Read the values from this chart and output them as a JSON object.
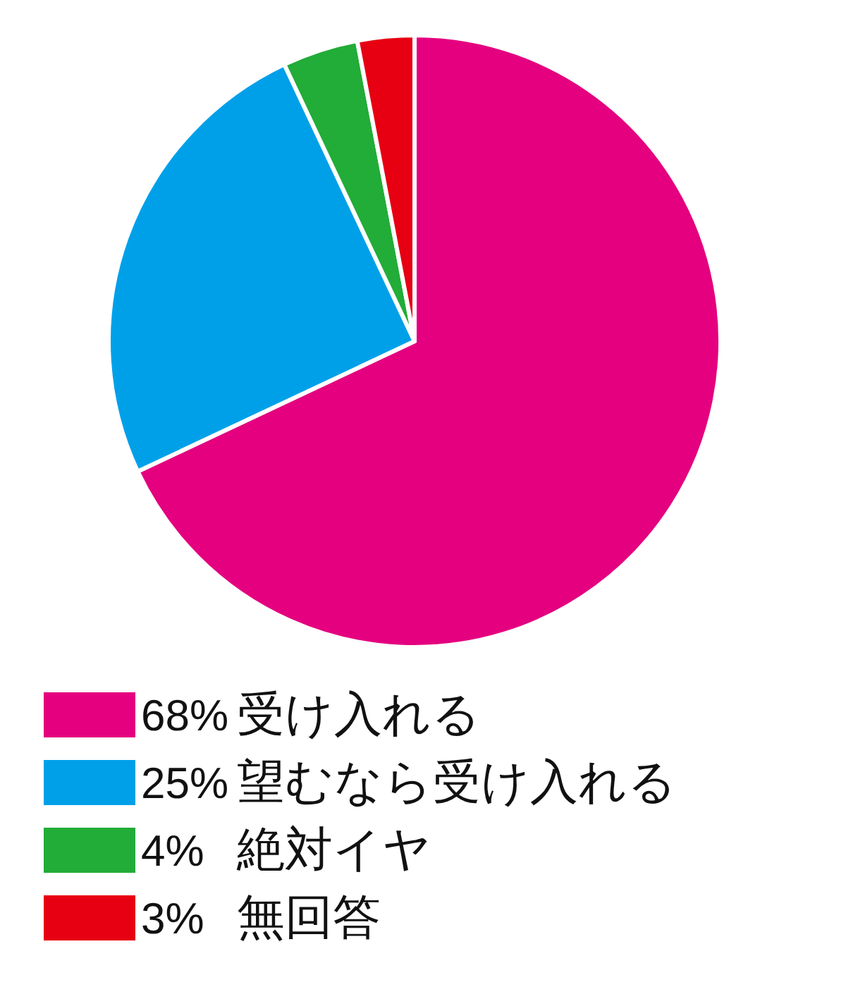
{
  "chart_data": {
    "type": "pie",
    "categories": [
      "受け入れる",
      "望むなら受け入れる",
      "絶対イヤ",
      "無回答"
    ],
    "values": [
      68,
      25,
      4,
      3
    ],
    "colors": [
      "#e4007f",
      "#00a0e9",
      "#22ac38",
      "#e60012"
    ],
    "value_labels": [
      "68%",
      "25%",
      "4%",
      "3%"
    ],
    "legend": "bottom"
  }
}
